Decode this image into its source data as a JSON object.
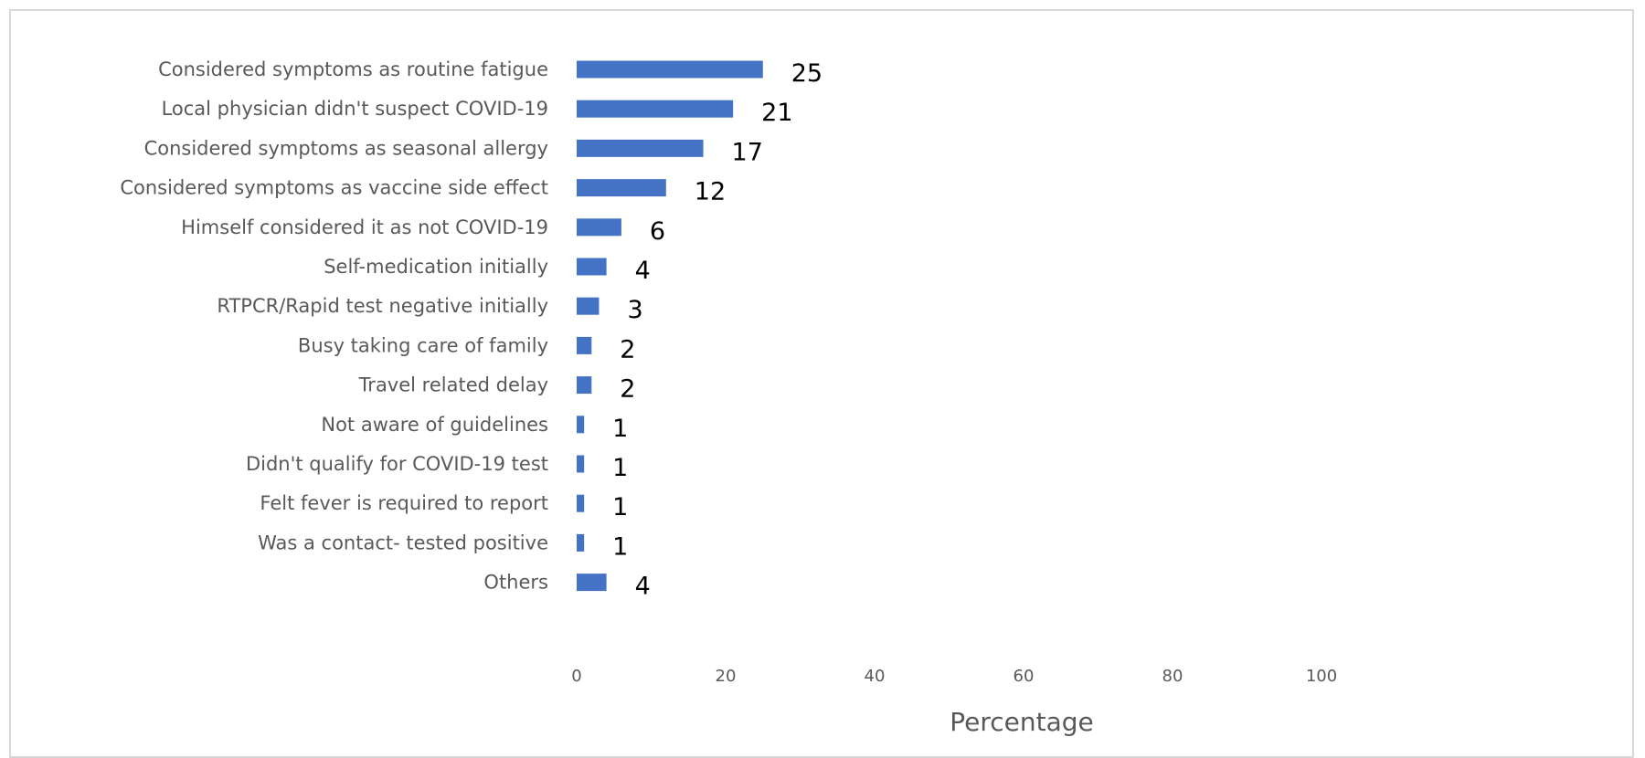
{
  "chart_data": {
    "type": "bar",
    "orientation": "horizontal",
    "categories": [
      "Considered symptoms as routine fatigue",
      "Local physician didn't suspect COVID-19",
      "Considered symptoms as seasonal allergy",
      "Considered symptoms as vaccine side effect",
      "Himself considered it as not COVID-19",
      "Self-medication initially",
      "RTPCR/Rapid test negative initially",
      "Busy taking care of family",
      "Travel related delay",
      "Not aware of guidelines",
      "Didn't qualify for COVID-19 test",
      "Felt fever is required to report",
      "Was a contact- tested positive",
      "Others"
    ],
    "values": [
      25,
      21,
      17,
      12,
      6,
      4,
      3,
      2,
      2,
      1,
      1,
      1,
      1,
      4
    ],
    "data_labels": [
      "25",
      "21",
      "17",
      "12",
      "6",
      "4",
      "3",
      "2",
      "2",
      "1",
      "1",
      "1",
      "1",
      "4"
    ],
    "xlim": [
      0,
      100
    ],
    "xticks": [
      "0",
      "20",
      "40",
      "60",
      "80",
      "100"
    ],
    "xlabel": "Percentage",
    "ylabel": "",
    "title": "",
    "grid": false,
    "legend": "none",
    "bar_color": "#4472c4"
  }
}
